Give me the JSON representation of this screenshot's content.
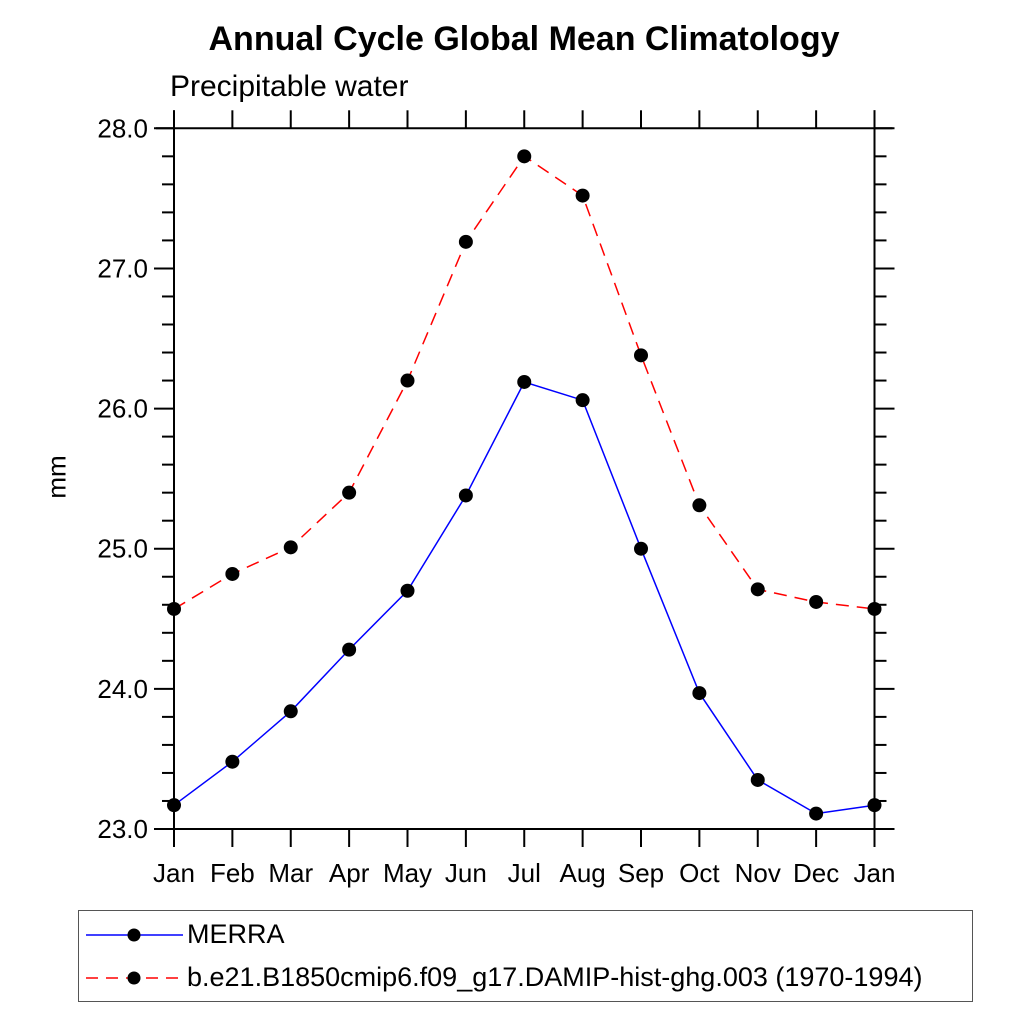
{
  "chart_data": {
    "type": "line",
    "title": "Annual Cycle Global Mean Climatology",
    "subtitle": "Precipitable water",
    "ylabel": "mm",
    "xlabel": "",
    "x_labels": [
      "Jan",
      "Feb",
      "Mar",
      "Apr",
      "May",
      "Jun",
      "Jul",
      "Aug",
      "Sep",
      "Oct",
      "Nov",
      "Dec",
      "Jan"
    ],
    "ylim": [
      23.0,
      28.0
    ],
    "y_major_step": 1.0,
    "y_minor_step": 0.2,
    "y_tick_decimals": 1,
    "grid": false,
    "legend_position": "bottom-left-box",
    "axis_color": "#000000",
    "marker_color": "#000000",
    "series": [
      {
        "name": "MERRA",
        "color": "#0000ff",
        "line_style": "solid",
        "marker": "filled-circle",
        "values": [
          23.17,
          23.48,
          23.84,
          24.28,
          24.7,
          25.38,
          26.19,
          26.06,
          25.0,
          23.97,
          23.35,
          23.11,
          23.17
        ]
      },
      {
        "name": "b.e21.B1850cmip6.f09_g17.DAMIP-hist-ghg.003 (1970-1994)",
        "color": "#ff0000",
        "line_style": "dashed",
        "marker": "filled-circle",
        "values": [
          24.57,
          24.82,
          25.01,
          25.4,
          26.2,
          27.19,
          27.8,
          27.52,
          26.38,
          25.31,
          24.71,
          24.62,
          24.57
        ]
      }
    ]
  }
}
